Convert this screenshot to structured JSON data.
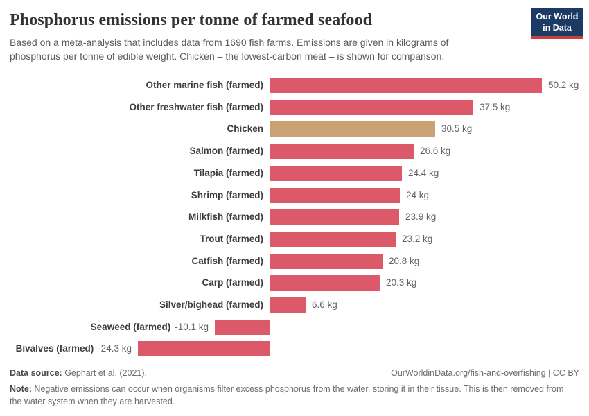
{
  "header": {
    "title": "Phosphorus emissions per tonne of farmed seafood",
    "subtitle": "Based on a meta-analysis that includes data from 1690 fish farms. Emissions are given in kilograms of phosphorus per tonne of edible weight. Chicken – the lowest-carbon meat – is shown for comparison.",
    "logo": {
      "line1": "Our World",
      "line2": "in Data",
      "bg_color": "#1b3a64",
      "stripe_color": "#c7403d"
    }
  },
  "chart_data": {
    "type": "bar",
    "orientation": "horizontal",
    "title": "Phosphorus emissions per tonne of farmed seafood",
    "unit": "kg",
    "categories": [
      "Other marine fish (farmed)",
      "Other freshwater fish (farmed)",
      "Chicken",
      "Salmon (farmed)",
      "Tilapia (farmed)",
      "Shrimp (farmed)",
      "Milkfish (farmed)",
      "Trout (farmed)",
      "Catfish (farmed)",
      "Carp (farmed)",
      "Silver/bighead (farmed)",
      "Seaweed (farmed)",
      "Bivalves (farmed)"
    ],
    "values": [
      50.2,
      37.5,
      30.5,
      26.6,
      24.4,
      24,
      23.9,
      23.2,
      20.8,
      20.3,
      6.6,
      -10.1,
      -24.3
    ],
    "value_labels": [
      "50.2 kg",
      "37.5 kg",
      "30.5 kg",
      "26.6 kg",
      "24.4 kg",
      "24 kg",
      "23.9 kg",
      "23.2 kg",
      "20.8 kg",
      "20.3 kg",
      "6.6 kg",
      "-10.1 kg",
      "-24.3 kg"
    ],
    "highlight_index": 2,
    "colors": {
      "bar_default": "#db5968",
      "bar_highlight": "#c8a272",
      "axis": "#d9d9d9"
    },
    "xlim": [
      -24.3,
      50.2
    ],
    "grid": false,
    "legend": "none"
  },
  "footer": {
    "source_label": "Data source:",
    "source_text": " Gephart et al. (2021).",
    "link": "OurWorldinData.org/fish-and-overfishing | CC BY",
    "note_label": "Note:",
    "note_text": " Negative emissions can occur when organisms filter excess phosphorus from the water, storing it in their tissue. This is then removed from the water system when they are harvested."
  }
}
